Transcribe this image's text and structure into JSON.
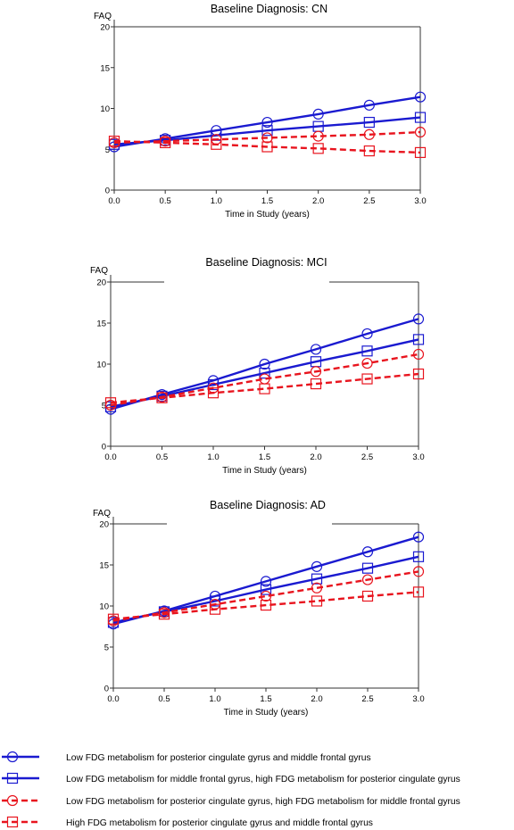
{
  "chart_data": [
    {
      "type": "line",
      "title": "Baseline Diagnosis: CN",
      "ylabel": "FAQ",
      "xlabel": "Time in Study (years)",
      "xlim": [
        0,
        3
      ],
      "ylim": [
        0,
        20
      ],
      "xticks": [
        0.0,
        0.5,
        1.0,
        1.5,
        2.0,
        2.5,
        3.0
      ],
      "xtick_labels": [
        "0.0",
        "0.5",
        "1.0",
        "1.5",
        "2.0",
        "2.5",
        "3.0"
      ],
      "yticks": [
        0,
        5,
        10,
        15,
        20
      ],
      "ytick_labels": [
        "0",
        "5",
        "10",
        "15",
        "20"
      ],
      "grid": false,
      "x": [
        0.0,
        0.5,
        1.0,
        1.5,
        2.0,
        2.5,
        3.0
      ],
      "series": [
        {
          "values": [
            5.3,
            6.3,
            7.3,
            8.3,
            9.3,
            10.4,
            11.4
          ]
        },
        {
          "values": [
            5.6,
            6.1,
            6.7,
            7.3,
            7.8,
            8.3,
            8.9
          ]
        },
        {
          "values": [
            5.8,
            6.0,
            6.2,
            6.4,
            6.6,
            6.8,
            7.1
          ]
        },
        {
          "values": [
            6.0,
            5.8,
            5.6,
            5.3,
            5.1,
            4.8,
            4.6
          ]
        }
      ]
    },
    {
      "type": "line",
      "title": "Baseline Diagnosis: MCI",
      "ylabel": "FAQ",
      "xlabel": "Time in Study (years)",
      "xlim": [
        0,
        3
      ],
      "ylim": [
        0,
        20
      ],
      "xticks": [
        0.0,
        0.5,
        1.0,
        1.5,
        2.0,
        2.5,
        3.0
      ],
      "xtick_labels": [
        "0.0",
        "0.5",
        "1.0",
        "1.5",
        "2.0",
        "2.5",
        "3.0"
      ],
      "yticks": [
        0,
        5,
        10,
        15,
        20
      ],
      "ytick_labels": [
        "0",
        "5",
        "10",
        "15",
        "20"
      ],
      "grid": false,
      "x": [
        0.0,
        0.5,
        1.0,
        1.5,
        2.0,
        2.5,
        3.0
      ],
      "series": [
        {
          "values": [
            4.5,
            6.3,
            8.0,
            10.0,
            11.8,
            13.7,
            15.5
          ]
        },
        {
          "values": [
            4.8,
            6.1,
            7.5,
            8.9,
            10.3,
            11.6,
            13.0
          ]
        },
        {
          "values": [
            5.0,
            6.0,
            7.1,
            8.2,
            9.1,
            10.1,
            11.2
          ]
        },
        {
          "values": [
            5.3,
            5.9,
            6.5,
            7.0,
            7.6,
            8.2,
            8.8
          ]
        }
      ]
    },
    {
      "type": "line",
      "title": "Baseline Diagnosis: AD",
      "ylabel": "FAQ",
      "xlabel": "Time in Study (years)",
      "xlim": [
        0,
        3
      ],
      "ylim": [
        0,
        20
      ],
      "xticks": [
        0.0,
        0.5,
        1.0,
        1.5,
        2.0,
        2.5,
        3.0
      ],
      "xtick_labels": [
        "0.0",
        "0.5",
        "1.0",
        "1.5",
        "2.0",
        "2.5",
        "3.0"
      ],
      "yticks": [
        0,
        5,
        10,
        15,
        20
      ],
      "ytick_labels": [
        "0",
        "5",
        "10",
        "15",
        "20"
      ],
      "grid": false,
      "x": [
        0.0,
        0.5,
        1.0,
        1.5,
        2.0,
        2.5,
        3.0
      ],
      "series": [
        {
          "values": [
            7.8,
            9.4,
            11.2,
            13.0,
            14.8,
            16.6,
            18.4
          ]
        },
        {
          "values": [
            8.0,
            9.3,
            10.6,
            12.0,
            13.3,
            14.6,
            16.0
          ]
        },
        {
          "values": [
            8.2,
            9.2,
            10.2,
            11.2,
            12.2,
            13.2,
            14.2
          ]
        },
        {
          "values": [
            8.4,
            9.0,
            9.6,
            10.1,
            10.6,
            11.2,
            11.7
          ]
        }
      ]
    }
  ],
  "legend": {
    "position": "bottom",
    "entries": [
      {
        "label": "Low FDG metabolism for posterior cingulate gyrus and middle frontal gyrus",
        "color": "#1a1ad0",
        "marker": "circle",
        "dash": "solid"
      },
      {
        "label": "Low FDG metabolism for middle frontal gyrus, high FDG metabolism for posterior cingulate gyrus",
        "color": "#1a1ad0",
        "marker": "square",
        "dash": "solid"
      },
      {
        "label": "Low FDG metabolism for posterior cingulate gyrus, high FDG metabolism for middle frontal gyrus",
        "color": "#e8141e",
        "marker": "circle",
        "dash": "dashed"
      },
      {
        "label": "High FDG metabolism for posterior cingulate gyrus and middle frontal gyrus",
        "color": "#e8141e",
        "marker": "square",
        "dash": "dashed"
      }
    ]
  }
}
